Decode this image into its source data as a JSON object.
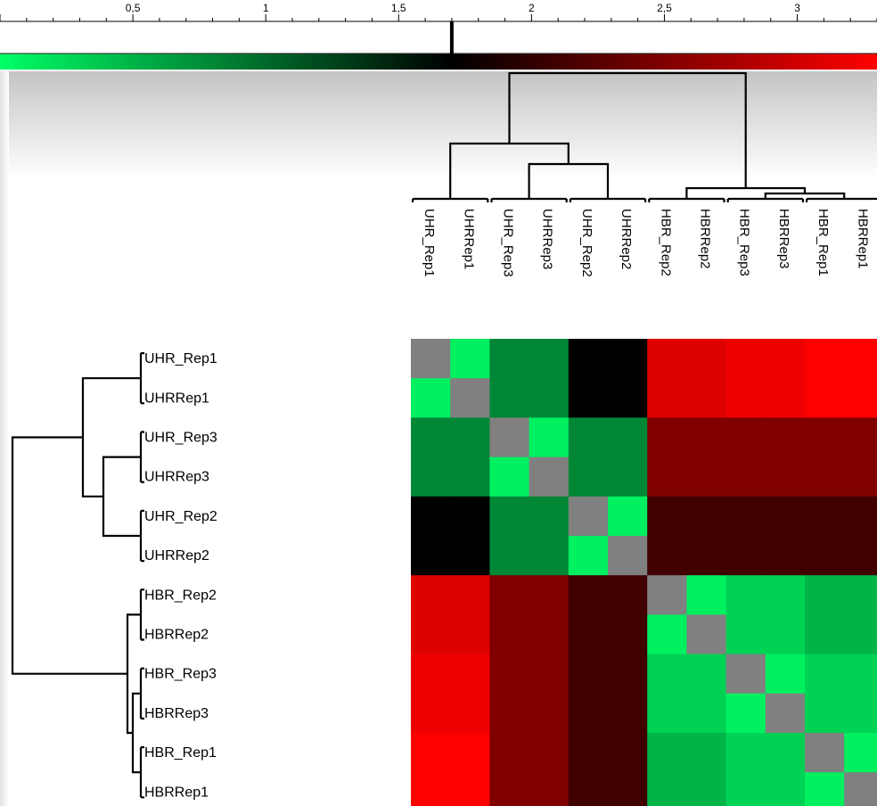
{
  "chart_data": {
    "type": "heatmap",
    "color_scale": {
      "min": 0,
      "max": 3.3,
      "ticks": [
        "0,5",
        "1",
        "1,5",
        "2",
        "2,5",
        "3"
      ],
      "tick_values": [
        0.5,
        1.0,
        1.5,
        2.0,
        2.5,
        3.0
      ],
      "marker_value": 1.7,
      "colors": [
        "#00ff66",
        "#000000",
        "#ff0000"
      ],
      "diagonal_color": "#808080"
    },
    "columns": [
      "UHR_Rep1",
      "UHRRep1",
      "UHR_Rep3",
      "UHRRep3",
      "UHR_Rep2",
      "UHRRep2",
      "HBR_Rep2",
      "HBRRep2",
      "HBR_Rep3",
      "HBRRep3",
      "HBR_Rep1",
      "HBRRep1"
    ],
    "rows": [
      "UHR_Rep1",
      "UHRRep1",
      "UHR_Rep3",
      "UHRRep3",
      "UHR_Rep2",
      "UHRRep2",
      "HBR_Rep2",
      "HBRRep2",
      "HBR_Rep3",
      "HBRRep3",
      "HBR_Rep1",
      "HBRRep1"
    ],
    "values": [
      [
        null,
        0.1,
        0.8,
        0.8,
        1.7,
        1.7,
        3.1,
        3.1,
        3.2,
        3.2,
        3.3,
        3.3
      ],
      [
        0.1,
        null,
        0.8,
        0.8,
        1.7,
        1.7,
        3.1,
        3.1,
        3.2,
        3.2,
        3.3,
        3.3
      ],
      [
        0.8,
        0.8,
        null,
        0.1,
        0.8,
        0.8,
        2.5,
        2.5,
        2.5,
        2.5,
        2.5,
        2.5
      ],
      [
        0.8,
        0.8,
        0.1,
        null,
        0.8,
        0.8,
        2.5,
        2.5,
        2.5,
        2.5,
        2.5,
        2.5
      ],
      [
        1.7,
        1.7,
        0.8,
        0.8,
        null,
        0.1,
        2.1,
        2.1,
        2.1,
        2.1,
        2.1,
        2.1
      ],
      [
        1.7,
        1.7,
        0.8,
        0.8,
        0.1,
        null,
        2.1,
        2.1,
        2.1,
        2.1,
        2.1,
        2.1
      ],
      [
        3.1,
        3.1,
        2.5,
        2.5,
        2.1,
        2.1,
        null,
        0.1,
        0.3,
        0.3,
        0.5,
        0.5
      ],
      [
        3.1,
        3.1,
        2.5,
        2.5,
        2.1,
        2.1,
        0.1,
        null,
        0.3,
        0.3,
        0.5,
        0.5
      ],
      [
        3.2,
        3.2,
        2.5,
        2.5,
        2.1,
        2.1,
        0.3,
        0.3,
        null,
        0.1,
        0.3,
        0.3
      ],
      [
        3.2,
        3.2,
        2.5,
        2.5,
        2.1,
        2.1,
        0.3,
        0.3,
        0.1,
        null,
        0.3,
        0.3
      ],
      [
        3.3,
        3.3,
        2.5,
        2.5,
        2.1,
        2.1,
        0.5,
        0.5,
        0.3,
        0.3,
        null,
        0.1
      ],
      [
        3.3,
        3.3,
        2.5,
        2.5,
        2.1,
        2.1,
        0.5,
        0.5,
        0.3,
        0.3,
        0.1,
        null
      ]
    ],
    "dendrogram": {
      "pairs": [
        [
          "UHR_Rep1",
          "UHRRep1"
        ],
        [
          "UHR_Rep3",
          "UHRRep3"
        ],
        [
          "UHR_Rep2",
          "UHRRep2"
        ],
        [
          "HBR_Rep2",
          "HBRRep2"
        ],
        [
          "HBR_Rep3",
          "HBRRep3"
        ],
        [
          "HBR_Rep1",
          "HBRRep1"
        ]
      ],
      "groups": [
        "UHR",
        "HBR"
      ]
    },
    "title": "",
    "xlabel": "",
    "ylabel": ""
  }
}
